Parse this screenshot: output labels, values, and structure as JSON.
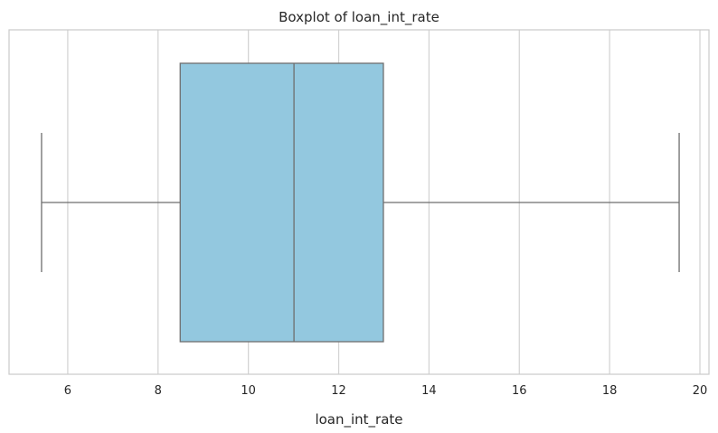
{
  "chart_data": {
    "type": "boxplot",
    "title": "Boxplot of loan_int_rate",
    "xlabel": "loan_int_rate",
    "ylabel": "",
    "orientation": "horizontal",
    "xlim": [
      4.7,
      20.2
    ],
    "xticks": [
      6,
      8,
      10,
      12,
      14,
      16,
      18,
      20
    ],
    "grid": true,
    "boxes": [
      {
        "whisker_low": 5.42,
        "q1": 8.49,
        "median": 11.01,
        "q3": 12.99,
        "whisker_high": 19.54,
        "outliers": []
      }
    ],
    "colors": {
      "box_fill": "#93c8df",
      "line": "#6e6e6e",
      "grid": "#d3d3d3",
      "frame": "#cccccc",
      "text": "#262626"
    }
  }
}
